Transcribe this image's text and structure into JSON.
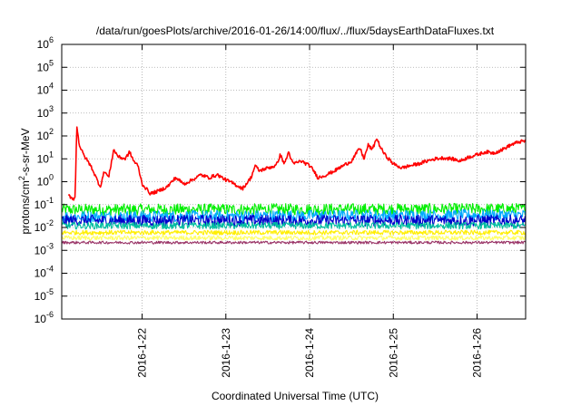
{
  "chart_data": {
    "type": "line",
    "title": "/data/run/goesPlots/archive/2016-01-26/14:00/flux/../flux/5daysEarthDataFluxes.txt",
    "xlabel": "Coordinated Universal Time (UTC)",
    "ylabel": "protons/cm²-s-sr-MeV",
    "y_scale": "log",
    "ylim": [
      1e-06,
      1000000.0
    ],
    "xlim": [
      "2016-01-21 03:00",
      "2016-01-26 14:00"
    ],
    "grid": true,
    "y_ticks": [
      {
        "base": "10",
        "exp": "-6"
      },
      {
        "base": "10",
        "exp": "-5"
      },
      {
        "base": "10",
        "exp": "-4"
      },
      {
        "base": "10",
        "exp": "-3"
      },
      {
        "base": "10",
        "exp": "-2"
      },
      {
        "base": "10",
        "exp": "-1"
      },
      {
        "base": "10",
        "exp": "0"
      },
      {
        "base": "10",
        "exp": "1"
      },
      {
        "base": "10",
        "exp": "2"
      },
      {
        "base": "10",
        "exp": "3"
      },
      {
        "base": "10",
        "exp": "4"
      },
      {
        "base": "10",
        "exp": "5"
      },
      {
        "base": "10",
        "exp": "6"
      }
    ],
    "x_ticks": [
      {
        "label": "2016-1-22",
        "day": 22
      },
      {
        "label": "2016-1-23",
        "day": 23
      },
      {
        "label": "2016-1-24",
        "day": 24
      },
      {
        "label": "2016-1-25",
        "day": 25
      },
      {
        "label": "2016-1-26",
        "day": 26
      }
    ],
    "series": [
      {
        "color": "#ff0000",
        "noise": 0.15,
        "points": [
          [
            21.12,
            0.25
          ],
          [
            21.18,
            0.18
          ],
          [
            21.2,
            0.2
          ],
          [
            21.22,
            300
          ],
          [
            21.25,
            40
          ],
          [
            21.3,
            15
          ],
          [
            21.35,
            8
          ],
          [
            21.4,
            4
          ],
          [
            21.45,
            1.5
          ],
          [
            21.5,
            0.6
          ],
          [
            21.55,
            3
          ],
          [
            21.6,
            1.5
          ],
          [
            21.66,
            25
          ],
          [
            21.72,
            12
          ],
          [
            21.8,
            10
          ],
          [
            21.85,
            20
          ],
          [
            21.9,
            8
          ],
          [
            21.95,
            5
          ],
          [
            22.0,
            0.8
          ],
          [
            22.1,
            0.3
          ],
          [
            22.2,
            0.4
          ],
          [
            22.3,
            0.6
          ],
          [
            22.4,
            1.5
          ],
          [
            22.5,
            0.8
          ],
          [
            22.6,
            1.2
          ],
          [
            22.7,
            2
          ],
          [
            22.8,
            1.5
          ],
          [
            22.9,
            2
          ],
          [
            23.0,
            1.2
          ],
          [
            23.1,
            0.8
          ],
          [
            23.2,
            0.5
          ],
          [
            23.3,
            1.5
          ],
          [
            23.35,
            5
          ],
          [
            23.4,
            3
          ],
          [
            23.5,
            4
          ],
          [
            23.6,
            5
          ],
          [
            23.65,
            15
          ],
          [
            23.7,
            6
          ],
          [
            23.75,
            20
          ],
          [
            23.8,
            6
          ],
          [
            23.9,
            8
          ],
          [
            24.0,
            5
          ],
          [
            24.05,
            3
          ],
          [
            24.1,
            1.5
          ],
          [
            24.2,
            2
          ],
          [
            24.3,
            3
          ],
          [
            24.4,
            5
          ],
          [
            24.5,
            8
          ],
          [
            24.6,
            30
          ],
          [
            24.65,
            10
          ],
          [
            24.7,
            40
          ],
          [
            24.75,
            25
          ],
          [
            24.8,
            80
          ],
          [
            24.85,
            30
          ],
          [
            24.9,
            15
          ],
          [
            25.0,
            6
          ],
          [
            25.1,
            4
          ],
          [
            25.2,
            5
          ],
          [
            25.3,
            6
          ],
          [
            25.4,
            8
          ],
          [
            25.5,
            10
          ],
          [
            25.6,
            11
          ],
          [
            25.7,
            10
          ],
          [
            25.8,
            8
          ],
          [
            25.9,
            12
          ],
          [
            26.0,
            15
          ],
          [
            26.1,
            20
          ],
          [
            26.2,
            18
          ],
          [
            26.3,
            25
          ],
          [
            26.4,
            40
          ],
          [
            26.5,
            55
          ],
          [
            26.58,
            60
          ]
        ]
      },
      {
        "color": "#00ee00",
        "noise": 0.5,
        "points": [
          [
            21.04,
            0.06
          ],
          [
            26.58,
            0.065
          ]
        ]
      },
      {
        "color": "#00aaff",
        "noise": 0.5,
        "points": [
          [
            21.04,
            0.03
          ],
          [
            26.58,
            0.035
          ]
        ]
      },
      {
        "color": "#0000cc",
        "noise": 0.5,
        "points": [
          [
            21.04,
            0.02
          ],
          [
            26.58,
            0.02
          ]
        ]
      },
      {
        "color": "#00bfa0",
        "noise": 0.3,
        "points": [
          [
            21.04,
            0.012
          ],
          [
            26.58,
            0.012
          ]
        ]
      },
      {
        "color": "#ffee00",
        "noise": 0.2,
        "points": [
          [
            21.04,
            0.006
          ],
          [
            26.58,
            0.006
          ]
        ]
      },
      {
        "color": "#ffff66",
        "noise": 0.2,
        "points": [
          [
            21.04,
            0.0035
          ],
          [
            26.58,
            0.0035
          ]
        ]
      },
      {
        "color": "#993366",
        "noise": 0.12,
        "points": [
          [
            21.04,
            0.0022
          ],
          [
            26.58,
            0.0022
          ]
        ]
      }
    ]
  }
}
